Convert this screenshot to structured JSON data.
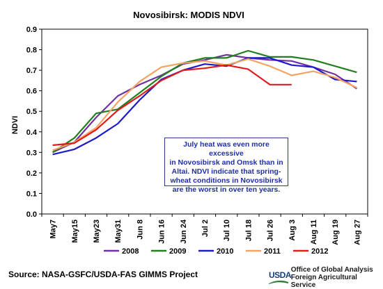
{
  "page": {
    "source": "Source:   NASA-GSFC/USDA-FAS GIMMS Project"
  },
  "agency": {
    "logo_text": "USDA",
    "line1": "Office of Global Analysis",
    "line2": "Foreign Agricultural Service"
  },
  "annotation": {
    "lines": [
      "July heat was even more excessive",
      "in Novosibirsk and Omsk than in",
      "Altai.  NDVI indicate that spring-",
      "wheat conditions in Novosibirsk",
      "are the worst in over ten years."
    ]
  },
  "chart_data": {
    "type": "line",
    "title": "Novosibirsk:  MODIS NDVI",
    "xlabel": "",
    "ylabel": "NDVI",
    "ylim": [
      0.0,
      0.9
    ],
    "yticks": [
      "0.0",
      "0.1",
      "0.2",
      "0.3",
      "0.4",
      "0.5",
      "0.6",
      "0.7",
      "0.8",
      "0.9"
    ],
    "ytick_values": [
      0.0,
      0.1,
      0.2,
      0.3,
      0.4,
      0.5,
      0.6,
      0.7,
      0.8,
      0.9
    ],
    "categories": [
      "May7",
      "May15",
      "May23",
      "May31",
      "Jun 8",
      "Jun 16",
      "Jun 24",
      "Jul 2",
      "Jul 10",
      "Jul 18",
      "Jul 26",
      "Aug 3",
      "Aug 11",
      "Aug 19",
      "Aug 27"
    ],
    "grid": false,
    "legend_position": "bottom",
    "series": [
      {
        "name": "2008",
        "color": "#7030a0",
        "values": [
          0.3,
          0.35,
          0.47,
          0.575,
          0.63,
          0.675,
          0.73,
          0.75,
          0.775,
          0.76,
          0.75,
          0.745,
          0.715,
          0.68,
          0.61
        ]
      },
      {
        "name": "2009",
        "color": "#1e7f1e",
        "values": [
          0.3,
          0.37,
          0.49,
          0.51,
          0.59,
          0.67,
          0.735,
          0.76,
          0.76,
          0.795,
          0.765,
          0.765,
          0.75,
          0.72,
          0.69
        ]
      },
      {
        "name": "2010",
        "color": "#1a1acc",
        "values": [
          0.29,
          0.315,
          0.37,
          0.44,
          0.555,
          0.655,
          0.7,
          0.73,
          0.72,
          0.76,
          0.76,
          0.725,
          0.715,
          0.655,
          0.645
        ]
      },
      {
        "name": "2011",
        "color": "#f4a460",
        "values": [
          0.31,
          0.35,
          0.42,
          0.545,
          0.645,
          0.715,
          0.735,
          0.745,
          0.725,
          0.755,
          0.72,
          0.675,
          0.695,
          0.665,
          0.615
        ]
      },
      {
        "name": "2012",
        "color": "#e01b1b",
        "values": [
          0.335,
          0.345,
          0.41,
          0.505,
          0.575,
          0.65,
          0.7,
          0.71,
          0.725,
          0.705,
          0.63,
          0.63,
          null,
          null,
          null
        ]
      }
    ]
  }
}
